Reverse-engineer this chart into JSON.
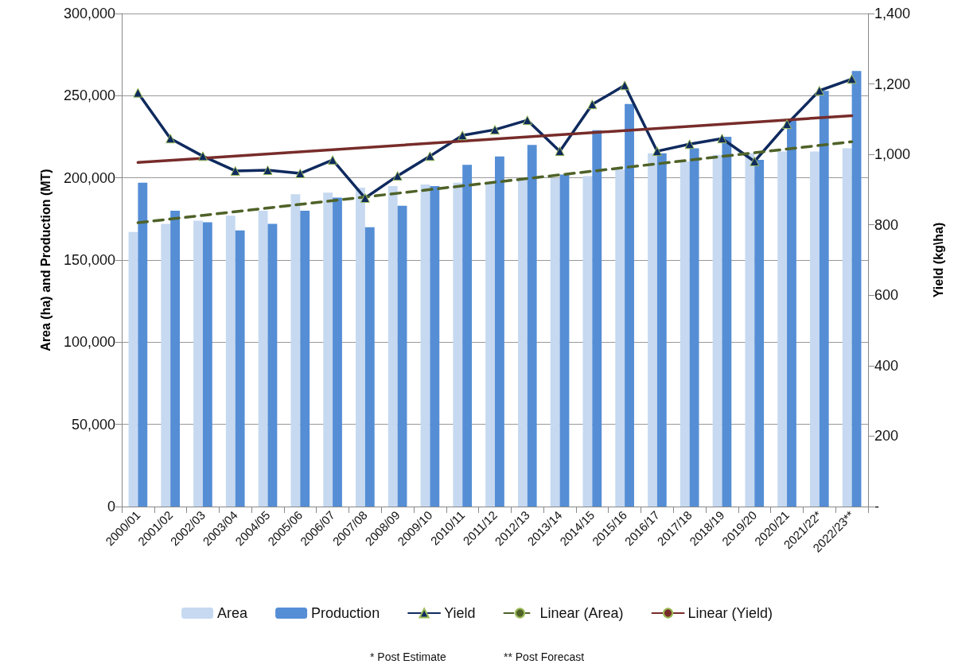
{
  "chart_data": {
    "type": "bar",
    "ylabel": "Area (ha) and Production (MT)",
    "y2label": "Yield (kg\\ha)",
    "categories": [
      "2000/01",
      "2001/02",
      "2002/03",
      "2003/04",
      "2004/05",
      "2005/06",
      "2006/07",
      "2007/08",
      "2008/09",
      "2009/10",
      "2010/11",
      "2011/12",
      "2012/13",
      "2013/14",
      "2014/15",
      "2015/16",
      "2016/17",
      "2017/18",
      "2018/19",
      "2019/20",
      "2020/21",
      "2021/22*",
      "2022/23**"
    ],
    "series": [
      {
        "name": "Area",
        "color": "#c6d9f1",
        "values": [
          167000,
          172000,
          174000,
          177000,
          180000,
          190000,
          191000,
          194000,
          195000,
          196000,
          197000,
          197000,
          199000,
          200000,
          201000,
          205000,
          215000,
          210000,
          214000,
          215000,
          216000,
          216000,
          218000
        ]
      },
      {
        "name": "Production",
        "color": "#558ed5",
        "values": [
          197000,
          180000,
          173000,
          168000,
          172000,
          180000,
          188000,
          170000,
          183000,
          195000,
          208000,
          213000,
          220000,
          202000,
          229000,
          245000,
          215000,
          218000,
          225000,
          211000,
          235000,
          253000,
          265000
        ]
      },
      {
        "name": "Yield",
        "type": "line",
        "axis": "y2",
        "color": "#0f2a5e",
        "marker": "triangle",
        "line_style": "solid",
        "values": [
          1175,
          1045,
          995,
          953,
          955,
          946,
          984,
          876,
          939,
          995,
          1054,
          1070,
          1097,
          1009,
          1142,
          1196,
          1009,
          1029,
          1045,
          980,
          1086,
          1181,
          1214
        ]
      },
      {
        "name": "Linear (Area)",
        "type": "line",
        "color": "#4f6228",
        "marker": "none",
        "line_style": "dashed",
        "x": [
          "2000/01",
          "2022/23**"
        ],
        "values": [
          172700,
          222000
        ]
      },
      {
        "name": "Linear (Yield)",
        "type": "line",
        "axis": "y2",
        "color": "#772c2a",
        "marker": "none",
        "line_style": "solid",
        "x": [
          "2000/01",
          "2022/23**"
        ],
        "values": [
          977,
          1110
        ]
      }
    ],
    "ylim": [
      0,
      300000
    ],
    "yticks": [
      {
        "value": 0,
        "label": "0"
      },
      {
        "value": 50000,
        "label": "50,000"
      },
      {
        "value": 100000,
        "label": "100,000"
      },
      {
        "value": 150000,
        "label": "150,000"
      },
      {
        "value": 200000,
        "label": "200,000"
      },
      {
        "value": 250000,
        "label": "250,000"
      },
      {
        "value": 300000,
        "label": "300,000"
      }
    ],
    "y2lim": [
      0,
      1400
    ],
    "y2ticks": [
      {
        "value": 0,
        "label": "-"
      },
      200,
      400,
      600,
      800,
      {
        "value": 1000,
        "label": "1,000"
      },
      {
        "value": 1200,
        "label": "1,200"
      },
      {
        "value": 1400,
        "label": "1,400"
      }
    ],
    "grid": "y",
    "legend": "bottom",
    "annotations": [
      "* Post Estimate",
      "** Post Forecast"
    ]
  }
}
